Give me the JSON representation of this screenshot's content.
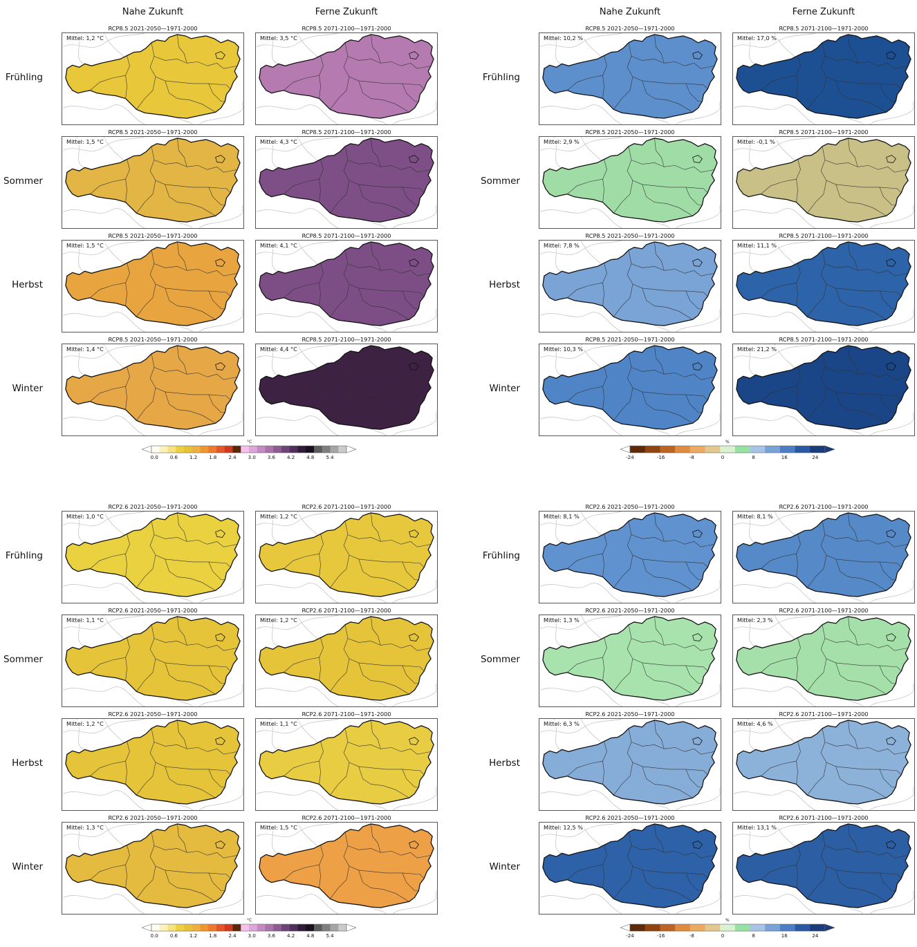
{
  "headers": {
    "near": "Nahe Zukunft",
    "far": "Ferne Zukunft"
  },
  "seasons": [
    "Frühling",
    "Sommer",
    "Herbst",
    "Winter"
  ],
  "period_titles": {
    "rcp85_near": "RCP8.5 2021-2050—1971-2000",
    "rcp85_far": "RCP8.5 2071-2100—1971-2000",
    "rcp26_near": "RCP2.6 2021-2050—1971-2000",
    "rcp26_far": "RCP2.6 2071-2100—1971-2000"
  },
  "blocks": [
    {
      "id": "rcp85-temperature",
      "variable": "temperature",
      "columns": [
        {
          "title_key": "rcp85_near",
          "means": [
            "Mittel: 1,2 °C",
            "Mittel: 1,5 °C",
            "Mittel: 1,5 °C",
            "Mittel: 1,4 °C"
          ],
          "fills": [
            "#e8c83a",
            "#e2b545",
            "#e8a53f",
            "#e6a747"
          ]
        },
        {
          "title_key": "rcp85_far",
          "means": [
            "Mittel: 3,5 °C",
            "Mittel: 4,3 °C",
            "Mittel: 4,1 °C",
            "Mittel: 4,4 °C"
          ],
          "fills": [
            "#b57bb0",
            "#7d4f86",
            "#7c4e85",
            "#3d2244"
          ]
        }
      ]
    },
    {
      "id": "rcp85-precipitation",
      "variable": "precipitation",
      "columns": [
        {
          "title_key": "rcp85_near",
          "means": [
            "Mittel: 10,2 %",
            "Mittel: 2,9 %",
            "Mittel: 7,8 %",
            "Mittel: 10,3 %"
          ],
          "fills": [
            "#5d8fcc",
            "#9fdca6",
            "#7aa3d6",
            "#4f85c6"
          ]
        },
        {
          "title_key": "rcp85_far",
          "means": [
            "Mittel: 17,0 %",
            "Mittel: -0,1 %",
            "Mittel: 11,1 %",
            "Mittel: 21,2 %"
          ],
          "fills": [
            "#1d4f93",
            "#c8c086",
            "#2d63a8",
            "#1a4587"
          ]
        }
      ]
    },
    {
      "id": "rcp26-temperature",
      "variable": "temperature",
      "columns": [
        {
          "title_key": "rcp26_near",
          "means": [
            "Mittel: 1,0 °C",
            "Mittel: 1,1 °C",
            "Mittel: 1,2 °C",
            "Mittel: 1,3 °C"
          ],
          "fills": [
            "#ead13f",
            "#e5c43a",
            "#e5c43a",
            "#e4bb3f"
          ]
        },
        {
          "title_key": "rcp26_far",
          "means": [
            "Mittel: 1,2 °C",
            "Mittel: 1,2 °C",
            "Mittel: 1,1 °C",
            "Mittel: 1,5 °C"
          ],
          "fills": [
            "#e7c83d",
            "#e5c43a",
            "#e8cd43",
            "#eda045"
          ]
        }
      ]
    },
    {
      "id": "rcp26-precipitation",
      "variable": "precipitation",
      "columns": [
        {
          "title_key": "rcp26_near",
          "means": [
            "Mittel: 8,1 %",
            "Mittel: 1,3 %",
            "Mittel: 6,3 %",
            "Mittel: 12,5 %"
          ],
          "fills": [
            "#5f92cf",
            "#a8e2ad",
            "#86acd8",
            "#2e62a8"
          ]
        },
        {
          "title_key": "rcp26_far",
          "means": [
            "Mittel: 8,1 %",
            "Mittel: 2,3 %",
            "Mittel: 4,6 %",
            "Mittel: 13,1 %"
          ],
          "fills": [
            "#5689c8",
            "#a5e0aa",
            "#8cb2da",
            "#2b5ea3"
          ]
        }
      ]
    }
  ],
  "colorbars": {
    "temperature": {
      "unit": "°C",
      "ticks": [
        "0.0",
        "0.6",
        "1.2",
        "1.8",
        "2.4",
        "3.0",
        "3.6",
        "4.2",
        "4.8",
        "5.4"
      ],
      "colors": [
        "#fffdf0",
        "#fdf2bb",
        "#f6e27e",
        "#ecd041",
        "#e8c236",
        "#eeb141",
        "#f1962e",
        "#ec7a2c",
        "#e4552a",
        "#cf3a1e",
        "#5a2808",
        "#f2c2ec",
        "#dca6d8",
        "#c58ac3",
        "#a973a8",
        "#8c5c91",
        "#6e4478",
        "#50305a",
        "#311b38",
        "#1a1020",
        "#5c5c5c",
        "#7f7f7f",
        "#a5a5a5",
        "#cbcbcb"
      ],
      "min_color": "#ffffff",
      "max_color": "#ffffff"
    },
    "precipitation": {
      "unit": "%",
      "ticks": [
        "-24",
        "-16",
        "-8",
        "0",
        "8",
        "16",
        "24"
      ],
      "colors": [
        "#5e2b08",
        "#8e4511",
        "#bc6423",
        "#e08c3f",
        "#edaa62",
        "#e2c78e",
        "#d8f2d2",
        "#98e1a4",
        "#a7c4e6",
        "#79a3d6",
        "#4d7ec3",
        "#2a58a4",
        "#1a3c79"
      ],
      "min_color": "#ffffff",
      "max_color": "#1a3c79"
    }
  }
}
